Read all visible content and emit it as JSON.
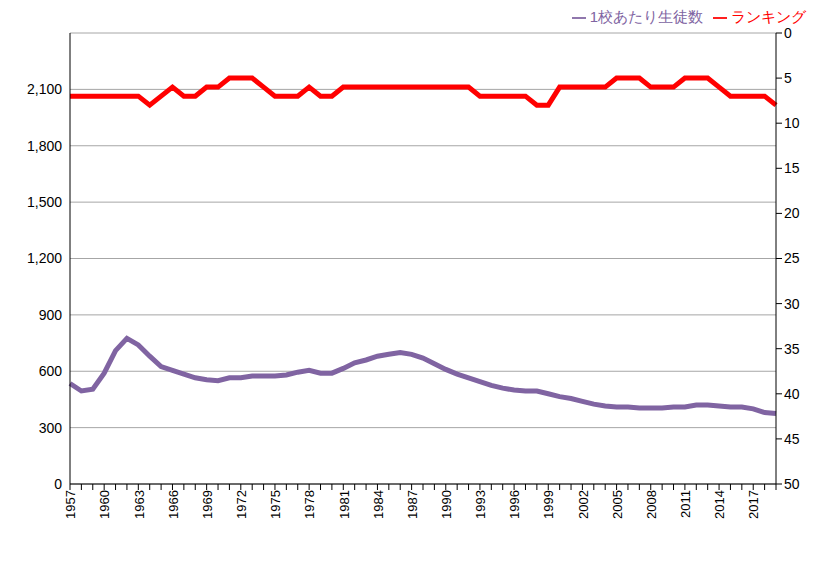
{
  "chart_data": {
    "type": "line",
    "categories": [
      "1957",
      null,
      null,
      "1960",
      null,
      null,
      "1963",
      null,
      null,
      "1966",
      null,
      null,
      "1969",
      null,
      null,
      "1972",
      null,
      null,
      "1975",
      null,
      null,
      "1978",
      null,
      null,
      "1981",
      null,
      null,
      "1984",
      null,
      null,
      "1987",
      null,
      null,
      "1990",
      null,
      null,
      "1993",
      null,
      null,
      "1996",
      null,
      null,
      "1999",
      null,
      null,
      "2002",
      null,
      null,
      "2005",
      null,
      null,
      "2008",
      null,
      null,
      "2011",
      null,
      null,
      "2014",
      null,
      null,
      "2017",
      null,
      null
    ],
    "series": [
      {
        "name": "1校あたり生徒数",
        "color": "#8064a2",
        "values": [
          535,
          495,
          505,
          590,
          710,
          775,
          740,
          680,
          625,
          605,
          585,
          565,
          555,
          550,
          565,
          565,
          575,
          575,
          575,
          580,
          595,
          605,
          590,
          590,
          615,
          645,
          660,
          680,
          690,
          700,
          690,
          670,
          640,
          610,
          585,
          565,
          545,
          525,
          510,
          500,
          495,
          495,
          480,
          465,
          455,
          440,
          425,
          415,
          410,
          410,
          405,
          405,
          405,
          410,
          410,
          420,
          420,
          415,
          410,
          410,
          400,
          380,
          375
        ]
      },
      {
        "name": "ランキング",
        "color": "#ff0000",
        "axis": "y2",
        "values": [
          7,
          7,
          7,
          7,
          7,
          7,
          7,
          8,
          7,
          6,
          7,
          7,
          6,
          6,
          5,
          5,
          5,
          6,
          7,
          7,
          7,
          6,
          7,
          7,
          6,
          6,
          6,
          6,
          6,
          6,
          6,
          6,
          6,
          6,
          6,
          6,
          7,
          7,
          7,
          7,
          7,
          8,
          8,
          6,
          6,
          6,
          6,
          6,
          5,
          5,
          5,
          6,
          6,
          6,
          5,
          5,
          5,
          6,
          7,
          7,
          7,
          7,
          8
        ]
      }
    ],
    "ylim": [
      0,
      2400
    ],
    "yticks": [
      0,
      300,
      600,
      900,
      {
        "value": 1200,
        "label": "1,200"
      },
      {
        "value": 1500,
        "label": "1,500"
      },
      {
        "value": 1800,
        "label": "1,800"
      },
      {
        "value": 2100,
        "label": "2,100"
      }
    ],
    "y2lim": [
      0,
      50
    ],
    "y2ticks": [
      0,
      5,
      10,
      15,
      20,
      25,
      30,
      35,
      40,
      45,
      50
    ],
    "grid": true,
    "legend": "top-right"
  }
}
